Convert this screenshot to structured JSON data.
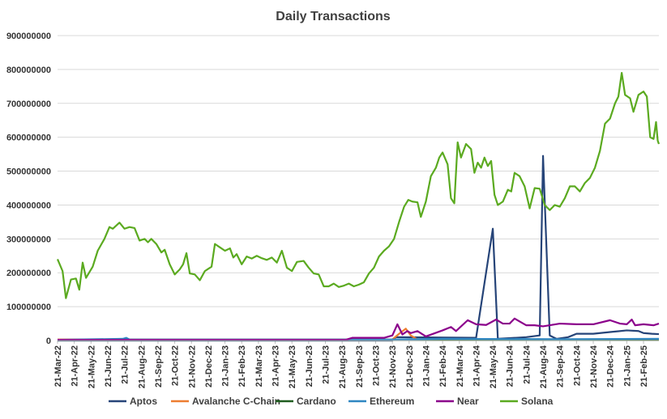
{
  "chart_data": {
    "type": "line",
    "title": "Daily Transactions",
    "xlabel": "",
    "ylabel": "",
    "ylim": [
      0,
      900000000
    ],
    "y_ticks": [
      "0",
      "100000000",
      "200000000",
      "300000000",
      "400000000",
      "500000000",
      "600000000",
      "700000000",
      "800000000",
      "900000000"
    ],
    "grid": true,
    "legend_position": "bottom",
    "x_tick_labels": [
      "21-Mar-22",
      "21-Apr-22",
      "21-May-22",
      "21-Jun-22",
      "21-Jul-22",
      "21-Aug-22",
      "21-Sep-22",
      "21-Oct-22",
      "21-Nov-22",
      "21-Dec-22",
      "21-Jan-23",
      "21-Feb-23",
      "21-Mar-23",
      "21-Apr-23",
      "21-May-23",
      "21-Jun-23",
      "21-Jul-23",
      "21-Aug-23",
      "21-Sep-23",
      "21-Oct-23",
      "21-Nov-23",
      "21-Dec-23",
      "21-Jan-24",
      "21-Feb-24",
      "21-Mar-24",
      "21-Apr-24",
      "21-May-24",
      "21-Jun-24",
      "21-Jul-24",
      "21-Aug-24",
      "21-Sep-24",
      "21-Oct-24",
      "21-Nov-24",
      "21-Dec-24",
      "21-Jan-25",
      "21-Feb-25"
    ],
    "series": [
      {
        "name": "Aptos",
        "color": "#264478",
        "points": [
          [
            0,
            0
          ],
          [
            20,
            0
          ],
          [
            20.2,
            10000000
          ],
          [
            25,
            8000000
          ],
          [
            26,
            330000000
          ],
          [
            26.3,
            5000000
          ],
          [
            28,
            10000000
          ],
          [
            28.8,
            15000000
          ],
          [
            29,
            545000000
          ],
          [
            29.4,
            15000000
          ],
          [
            29.8,
            5000000
          ],
          [
            30.5,
            10000000
          ],
          [
            31,
            20000000
          ],
          [
            32,
            20000000
          ],
          [
            33,
            25000000
          ],
          [
            34,
            30000000
          ],
          [
            34.7,
            28000000
          ],
          [
            35,
            22000000
          ],
          [
            35.5,
            20000000
          ],
          [
            35.92,
            19000000
          ]
        ]
      },
      {
        "name": "Avalanche C-Chain",
        "color": "#ED7D31",
        "points": [
          [
            0,
            3000000
          ],
          [
            20,
            3000000
          ],
          [
            20.4,
            20000000
          ],
          [
            20.8,
            35000000
          ],
          [
            21.1,
            15000000
          ],
          [
            21.5,
            3000000
          ],
          [
            26,
            3000000
          ],
          [
            35.92,
            3000000
          ]
        ]
      },
      {
        "name": "Cardano",
        "color": "#1E5C1E",
        "points": [
          [
            0,
            1000000
          ],
          [
            35.92,
            1000000
          ]
        ]
      },
      {
        "name": "Ethereum",
        "color": "#2E86C1",
        "points": [
          [
            0,
            2000000
          ],
          [
            3.9,
            5000000
          ],
          [
            4.1,
            8000000
          ],
          [
            4.3,
            3000000
          ],
          [
            20,
            3000000
          ],
          [
            23,
            5000000
          ],
          [
            30,
            4000000
          ],
          [
            35.92,
            5000000
          ]
        ]
      },
      {
        "name": "Near",
        "color": "#8B008B",
        "points": [
          [
            0,
            2000000
          ],
          [
            17.2,
            2000000
          ],
          [
            17.6,
            8000000
          ],
          [
            19.5,
            8000000
          ],
          [
            20,
            15000000
          ],
          [
            20.3,
            48000000
          ],
          [
            20.6,
            18000000
          ],
          [
            20.9,
            28000000
          ],
          [
            21.1,
            22000000
          ],
          [
            21.5,
            28000000
          ],
          [
            22,
            12000000
          ],
          [
            23,
            30000000
          ],
          [
            23.5,
            40000000
          ],
          [
            23.8,
            28000000
          ],
          [
            24.5,
            60000000
          ],
          [
            25,
            48000000
          ],
          [
            25.6,
            46000000
          ],
          [
            26.2,
            62000000
          ],
          [
            26.6,
            50000000
          ],
          [
            27,
            50000000
          ],
          [
            27.3,
            65000000
          ],
          [
            28,
            45000000
          ],
          [
            28.5,
            45000000
          ],
          [
            29,
            42000000
          ],
          [
            30,
            50000000
          ],
          [
            31,
            48000000
          ],
          [
            32,
            48000000
          ],
          [
            33,
            60000000
          ],
          [
            33.6,
            50000000
          ],
          [
            34,
            48000000
          ],
          [
            34.3,
            62000000
          ],
          [
            34.5,
            45000000
          ],
          [
            35,
            48000000
          ],
          [
            35.6,
            45000000
          ],
          [
            35.92,
            50000000
          ]
        ]
      },
      {
        "name": "Solana",
        "color": "#5BAA20",
        "points": [
          [
            0,
            240000000
          ],
          [
            0.3,
            205000000
          ],
          [
            0.5,
            125000000
          ],
          [
            0.8,
            180000000
          ],
          [
            1.1,
            183000000
          ],
          [
            1.3,
            150000000
          ],
          [
            1.5,
            230000000
          ],
          [
            1.7,
            185000000
          ],
          [
            2.1,
            218000000
          ],
          [
            2.4,
            265000000
          ],
          [
            2.8,
            300000000
          ],
          [
            3.1,
            335000000
          ],
          [
            3.3,
            330000000
          ],
          [
            3.7,
            348000000
          ],
          [
            4,
            330000000
          ],
          [
            4.3,
            335000000
          ],
          [
            4.6,
            332000000
          ],
          [
            4.9,
            295000000
          ],
          [
            5.2,
            300000000
          ],
          [
            5.4,
            290000000
          ],
          [
            5.6,
            300000000
          ],
          [
            5.9,
            285000000
          ],
          [
            6.2,
            260000000
          ],
          [
            6.4,
            268000000
          ],
          [
            6.7,
            225000000
          ],
          [
            7,
            195000000
          ],
          [
            7.3,
            210000000
          ],
          [
            7.5,
            225000000
          ],
          [
            7.7,
            258000000
          ],
          [
            7.9,
            198000000
          ],
          [
            8.2,
            195000000
          ],
          [
            8.5,
            178000000
          ],
          [
            8.8,
            205000000
          ],
          [
            9.2,
            218000000
          ],
          [
            9.4,
            285000000
          ],
          [
            9.7,
            275000000
          ],
          [
            10,
            265000000
          ],
          [
            10.3,
            272000000
          ],
          [
            10.5,
            245000000
          ],
          [
            10.7,
            255000000
          ],
          [
            11,
            225000000
          ],
          [
            11.3,
            248000000
          ],
          [
            11.6,
            242000000
          ],
          [
            11.9,
            250000000
          ],
          [
            12.2,
            243000000
          ],
          [
            12.5,
            238000000
          ],
          [
            12.8,
            245000000
          ],
          [
            13.1,
            230000000
          ],
          [
            13.4,
            265000000
          ],
          [
            13.7,
            215000000
          ],
          [
            14,
            205000000
          ],
          [
            14.3,
            232000000
          ],
          [
            14.7,
            235000000
          ],
          [
            15,
            215000000
          ],
          [
            15.3,
            198000000
          ],
          [
            15.6,
            195000000
          ],
          [
            15.9,
            160000000
          ],
          [
            16.2,
            160000000
          ],
          [
            16.5,
            168000000
          ],
          [
            16.8,
            158000000
          ],
          [
            17.1,
            162000000
          ],
          [
            17.4,
            168000000
          ],
          [
            17.7,
            160000000
          ],
          [
            18,
            165000000
          ],
          [
            18.3,
            172000000
          ],
          [
            18.6,
            198000000
          ],
          [
            18.9,
            215000000
          ],
          [
            19.2,
            248000000
          ],
          [
            19.5,
            265000000
          ],
          [
            19.8,
            278000000
          ],
          [
            20.1,
            300000000
          ],
          [
            20.4,
            350000000
          ],
          [
            20.7,
            395000000
          ],
          [
            20.95,
            415000000
          ],
          [
            21.2,
            410000000
          ],
          [
            21.5,
            408000000
          ],
          [
            21.7,
            365000000
          ],
          [
            22,
            410000000
          ],
          [
            22.3,
            485000000
          ],
          [
            22.6,
            510000000
          ],
          [
            22.8,
            540000000
          ],
          [
            23,
            555000000
          ],
          [
            23.3,
            520000000
          ],
          [
            23.5,
            420000000
          ],
          [
            23.7,
            405000000
          ],
          [
            23.9,
            585000000
          ],
          [
            24.1,
            540000000
          ],
          [
            24.4,
            580000000
          ],
          [
            24.7,
            565000000
          ],
          [
            24.9,
            495000000
          ],
          [
            25.1,
            525000000
          ],
          [
            25.3,
            510000000
          ],
          [
            25.5,
            540000000
          ],
          [
            25.7,
            515000000
          ],
          [
            25.9,
            530000000
          ],
          [
            26.1,
            430000000
          ],
          [
            26.3,
            400000000
          ],
          [
            26.6,
            410000000
          ],
          [
            26.9,
            445000000
          ],
          [
            27.1,
            440000000
          ],
          [
            27.3,
            495000000
          ],
          [
            27.6,
            485000000
          ],
          [
            27.9,
            455000000
          ],
          [
            28.2,
            390000000
          ],
          [
            28.5,
            450000000
          ],
          [
            28.8,
            448000000
          ],
          [
            29.1,
            400000000
          ],
          [
            29.4,
            385000000
          ],
          [
            29.7,
            400000000
          ],
          [
            30,
            395000000
          ],
          [
            30.3,
            420000000
          ],
          [
            30.6,
            455000000
          ],
          [
            30.9,
            455000000
          ],
          [
            31.2,
            440000000
          ],
          [
            31.5,
            465000000
          ],
          [
            31.8,
            480000000
          ],
          [
            32.1,
            510000000
          ],
          [
            32.4,
            560000000
          ],
          [
            32.7,
            640000000
          ],
          [
            33,
            655000000
          ],
          [
            33.3,
            700000000
          ],
          [
            33.5,
            720000000
          ],
          [
            33.7,
            790000000
          ],
          [
            33.9,
            725000000
          ],
          [
            34.2,
            715000000
          ],
          [
            34.4,
            675000000
          ],
          [
            34.7,
            725000000
          ],
          [
            35,
            735000000
          ],
          [
            35.2,
            720000000
          ],
          [
            35.4,
            600000000
          ],
          [
            35.6,
            595000000
          ],
          [
            35.75,
            645000000
          ],
          [
            35.85,
            590000000
          ],
          [
            35.92,
            580000000
          ]
        ]
      }
    ]
  }
}
